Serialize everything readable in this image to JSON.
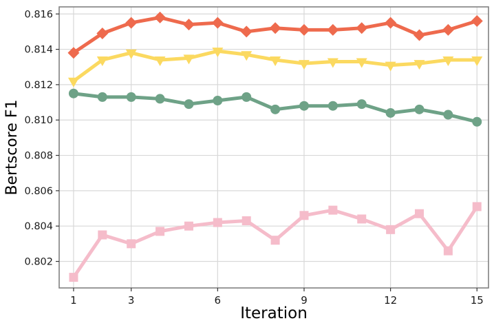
{
  "chart_data": {
    "type": "line",
    "xlabel": "Iteration",
    "ylabel": "Bertscore F1",
    "x": [
      1,
      2,
      3,
      4,
      5,
      6,
      7,
      8,
      9,
      10,
      11,
      12,
      13,
      14,
      15
    ],
    "xticks": [
      1,
      3,
      6,
      9,
      12,
      15
    ],
    "yticks": [
      0.802,
      0.804,
      0.806,
      0.808,
      0.81,
      0.812,
      0.814,
      0.816
    ],
    "xlim": [
      0.5,
      15.4
    ],
    "ylim": [
      0.8005,
      0.8164
    ],
    "grid": true,
    "legend": "none",
    "grid_color": "#d8d8d8",
    "spine_color": "#808080",
    "series": [
      {
        "name": "orange-diamond",
        "marker": "diamond",
        "color": "#ee6a4d",
        "values": [
          0.8138,
          0.8149,
          0.8155,
          0.8158,
          0.8154,
          0.8155,
          0.815,
          0.8152,
          0.8151,
          0.8151,
          0.8152,
          0.8155,
          0.8148,
          0.8151,
          0.8156
        ]
      },
      {
        "name": "yellow-triangle-down",
        "marker": "triangle-down",
        "color": "#fbd960",
        "values": [
          0.8122,
          0.8134,
          0.8138,
          0.8134,
          0.8135,
          0.8139,
          0.8137,
          0.8134,
          0.8132,
          0.8133,
          0.8133,
          0.8131,
          0.8132,
          0.8134,
          0.8134
        ]
      },
      {
        "name": "green-circle",
        "marker": "circle",
        "color": "#6ea287",
        "values": [
          0.8115,
          0.8113,
          0.8113,
          0.8112,
          0.8109,
          0.8111,
          0.8113,
          0.8106,
          0.8108,
          0.8108,
          0.8109,
          0.8104,
          0.8106,
          0.8103,
          0.8099
        ]
      },
      {
        "name": "pink-square",
        "marker": "square",
        "color": "#f5bcca",
        "values": [
          0.8011,
          0.8035,
          0.803,
          0.8037,
          0.804,
          0.8042,
          0.8043,
          0.8032,
          0.8046,
          0.8049,
          0.8044,
          0.8038,
          0.8047,
          0.8026,
          0.8051
        ]
      }
    ]
  }
}
